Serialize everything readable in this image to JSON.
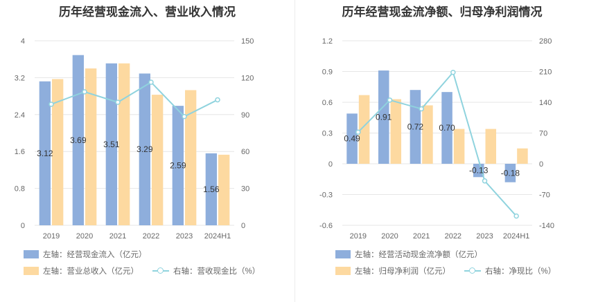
{
  "colors": {
    "bar_blue": "#8eaedc",
    "bar_orange": "#fdd9a0",
    "line": "#8fd3de",
    "grid": "#e6e6e6"
  },
  "chart_data": [
    {
      "type": "bar",
      "title": "历年经营现金流入、营业收入情况",
      "categories": [
        "2019",
        "2020",
        "2021",
        "2022",
        "2023",
        "2024H1"
      ],
      "y_left": {
        "min": 0,
        "max": 4,
        "ticks": [
          "0",
          "0.8",
          "1.6",
          "2.4",
          "3.2",
          "4"
        ]
      },
      "y_right": {
        "min": 0,
        "max": 150,
        "ticks": [
          "0",
          "30",
          "60",
          "90",
          "120",
          "150"
        ]
      },
      "series": [
        {
          "name": "左轴：经营现金流入（亿元）",
          "axis": "left",
          "kind": "bar",
          "color": "#8eaedc",
          "values": [
            3.12,
            3.69,
            3.51,
            3.29,
            2.59,
            1.56
          ],
          "labels": [
            "3.12",
            "3.69",
            "3.51",
            "3.29",
            "2.59",
            "1.56"
          ]
        },
        {
          "name": "左轴：营业总收入（亿元）",
          "axis": "left",
          "kind": "bar",
          "color": "#fdd9a0",
          "values": [
            3.17,
            3.4,
            3.51,
            2.83,
            2.93,
            1.53
          ]
        },
        {
          "name": "右轴：营收现金比（%）",
          "axis": "right",
          "kind": "line",
          "color": "#8fd3de",
          "values": [
            98.4,
            108.5,
            100.0,
            116.3,
            88.4,
            102.0
          ]
        }
      ]
    },
    {
      "type": "bar",
      "title": "历年经营现金流净额、归母净利润情况",
      "categories": [
        "2019",
        "2020",
        "2021",
        "2022",
        "2023",
        "2024H1"
      ],
      "y_left": {
        "min": -0.6,
        "max": 1.2,
        "ticks": [
          "-0.6",
          "-0.3",
          "0",
          "0.3",
          "0.6",
          "0.9",
          "1.2"
        ]
      },
      "y_right": {
        "min": -140,
        "max": 280,
        "ticks": [
          "-140",
          "-70",
          "0",
          "70",
          "140",
          "210",
          "280"
        ]
      },
      "series": [
        {
          "name": "左轴：经营活动现金流净额（亿元）",
          "axis": "left",
          "kind": "bar",
          "color": "#8eaedc",
          "values": [
            0.49,
            0.91,
            0.72,
            0.7,
            -0.13,
            -0.18
          ],
          "labels": [
            "0.49",
            "0.91",
            "0.72",
            "0.70",
            "-0.13",
            "-0.18"
          ]
        },
        {
          "name": "左轴：归母净利润（亿元）",
          "axis": "left",
          "kind": "bar",
          "color": "#fdd9a0",
          "values": [
            0.67,
            0.63,
            0.57,
            0.34,
            0.34,
            0.15
          ]
        },
        {
          "name": "右轴：净现比（%）",
          "axis": "right",
          "kind": "line",
          "color": "#8fd3de",
          "values": [
            72.0,
            145.0,
            125.0,
            208.0,
            -39.0,
            -119.0
          ]
        }
      ]
    }
  ]
}
